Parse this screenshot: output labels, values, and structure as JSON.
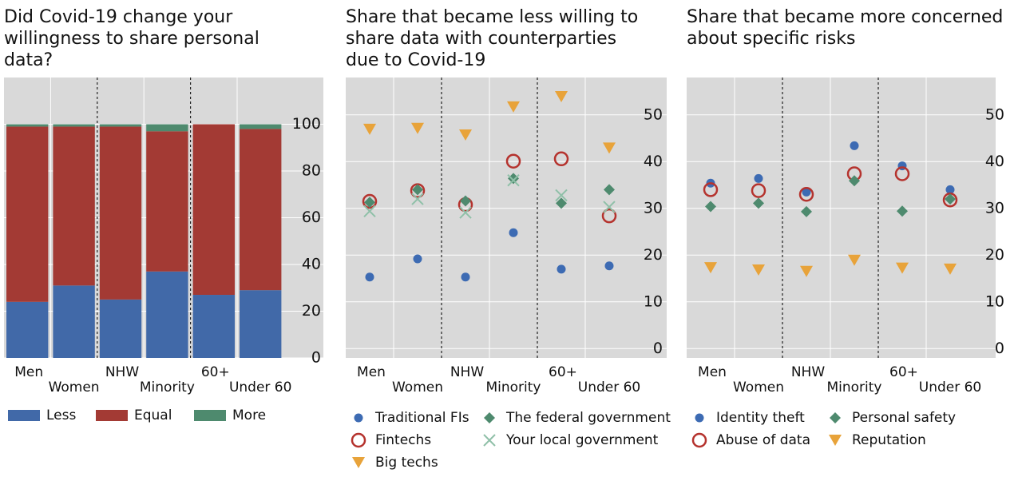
{
  "chart_data": [
    {
      "type": "bar",
      "stacked": true,
      "title": "Did Covid-19 change your willingness to share personal data?",
      "categories": [
        "Men",
        "Women",
        "NHW",
        "Minority",
        "60+",
        "Under 60"
      ],
      "series": [
        {
          "name": "Less",
          "color": "#4169a8",
          "values": [
            24,
            31,
            25,
            37,
            27,
            29
          ]
        },
        {
          "name": "Equal",
          "color": "#a33a34",
          "values": [
            75,
            68,
            74,
            60,
            73,
            69
          ]
        },
        {
          "name": "More",
          "color": "#4e8a6e",
          "values": [
            1,
            1,
            1,
            3,
            0,
            2
          ]
        }
      ],
      "ylim": [
        0,
        120
      ],
      "yticks": [
        0,
        20,
        40,
        60,
        80,
        100
      ],
      "grid": true
    },
    {
      "type": "scatter",
      "title": "Share that became less willing to share data with counterparties due to Covid-19",
      "categories": [
        "Men",
        "Women",
        "NHW",
        "Minority",
        "60+",
        "Under 60"
      ],
      "series": [
        {
          "name": "Traditional FIs",
          "color": "#3d6bb3",
          "marker": "circle",
          "values": [
            15.3,
            19.2,
            15.3,
            24.8,
            17,
            17.7
          ]
        },
        {
          "name": "Fintechs",
          "color": "#b5332e",
          "marker": "open-circle",
          "values": [
            31.5,
            33.8,
            30.8,
            40.1,
            40.6,
            28.4
          ]
        },
        {
          "name": "Big techs",
          "color": "#e8a33a",
          "marker": "triangle-down",
          "values": [
            46.9,
            47.1,
            45.7,
            51.7,
            53.9,
            42.9
          ]
        },
        {
          "name": "The federal government",
          "color": "#4e8a6e",
          "marker": "diamond",
          "values": [
            31.3,
            34,
            31.6,
            36.4,
            31.1,
            34
          ]
        },
        {
          "name": "Your local government",
          "color": "#8fc0a8",
          "marker": "x",
          "values": [
            29.4,
            32,
            29.1,
            36,
            32.8,
            30.3
          ]
        }
      ],
      "ylim": [
        -2,
        58
      ],
      "yticks": [
        0,
        10,
        20,
        30,
        40,
        50
      ],
      "grid": true
    },
    {
      "type": "scatter",
      "title": "Share that became more concerned about specific risks",
      "categories": [
        "Men",
        "Women",
        "NHW",
        "Minority",
        "60+",
        "Under 60"
      ],
      "series": [
        {
          "name": "Identity theft",
          "color": "#3d6bb3",
          "marker": "circle",
          "values": [
            35.4,
            36.4,
            33.5,
            43.4,
            39.1,
            34
          ]
        },
        {
          "name": "Abuse of data",
          "color": "#b5332e",
          "marker": "open-circle",
          "values": [
            34,
            33.8,
            33,
            37.4,
            37.4,
            31.8
          ]
        },
        {
          "name": "Personal safety",
          "color": "#4e8a6e",
          "marker": "diamond",
          "values": [
            30.4,
            31.1,
            29.3,
            35.9,
            29.4,
            32
          ]
        },
        {
          "name": "Reputation",
          "color": "#e8a33a",
          "marker": "triangle-down",
          "values": [
            17.3,
            16.8,
            16.5,
            18.9,
            17.2,
            17
          ]
        }
      ],
      "ylim": [
        -2,
        58
      ],
      "yticks": [
        0,
        10,
        20,
        30,
        40,
        50
      ],
      "grid": true
    }
  ]
}
